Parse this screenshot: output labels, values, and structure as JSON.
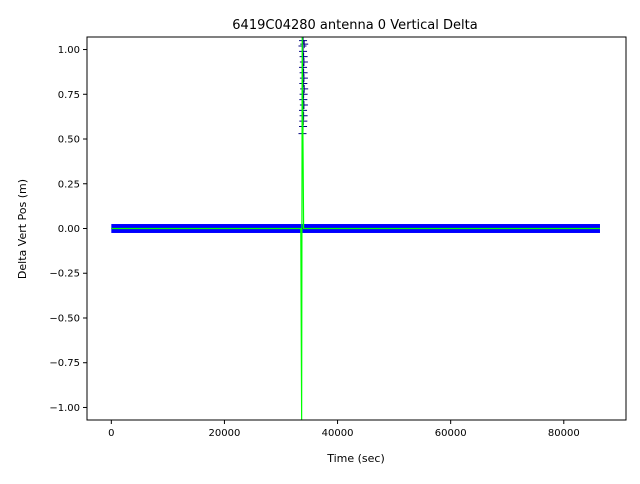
{
  "chart_data": {
    "type": "scatter",
    "title": "6419C04280 antenna 0 Vertical Delta",
    "xlabel": "Time (sec)",
    "ylabel": "Delta Vert Pos (m)",
    "xlim": [
      -4300,
      91000
    ],
    "ylim": [
      -1.07,
      1.07
    ],
    "grid": false,
    "x_ticks": [
      0,
      20000,
      40000,
      60000,
      80000
    ],
    "x_tick_labels": [
      "0",
      "20000",
      "40000",
      "60000",
      "80000"
    ],
    "y_ticks": [
      -1.0,
      -0.75,
      -0.5,
      -0.25,
      0.0,
      0.25,
      0.5,
      0.75,
      1.0
    ],
    "y_tick_labels": [
      "−1.00",
      "−0.75",
      "−0.50",
      "−0.25",
      "0.00",
      "0.25",
      "0.50",
      "0.75",
      "1.00"
    ],
    "series": [
      {
        "style": "error-band",
        "color": "#0000ff",
        "x_range": [
          0,
          86400
        ],
        "center": 0.0,
        "band_halfwidth": 0.025
      },
      {
        "style": "plus-markers",
        "color": "#000080",
        "points": [
          [
            33800,
            0.53
          ],
          [
            33900,
            0.57
          ],
          [
            33950,
            0.6
          ],
          [
            34000,
            0.63
          ],
          [
            33900,
            0.66
          ],
          [
            34050,
            0.69
          ],
          [
            33950,
            0.72
          ],
          [
            34000,
            0.75
          ],
          [
            34100,
            0.78
          ],
          [
            33950,
            0.81
          ],
          [
            34050,
            0.84
          ],
          [
            34000,
            0.87
          ],
          [
            33900,
            0.9
          ],
          [
            34050,
            0.93
          ],
          [
            34000,
            0.96
          ],
          [
            33900,
            0.99
          ],
          [
            33800,
            1.02
          ],
          [
            33900,
            1.05
          ],
          [
            34100,
            1.03
          ]
        ]
      },
      {
        "style": "line",
        "color": "#00ff00",
        "points": [
          [
            0,
            0.0
          ],
          [
            33500,
            0.0
          ],
          [
            33650,
            -1.07
          ],
          [
            33750,
            1.07
          ],
          [
            34000,
            0.0
          ],
          [
            86400,
            0.0
          ]
        ]
      }
    ]
  }
}
